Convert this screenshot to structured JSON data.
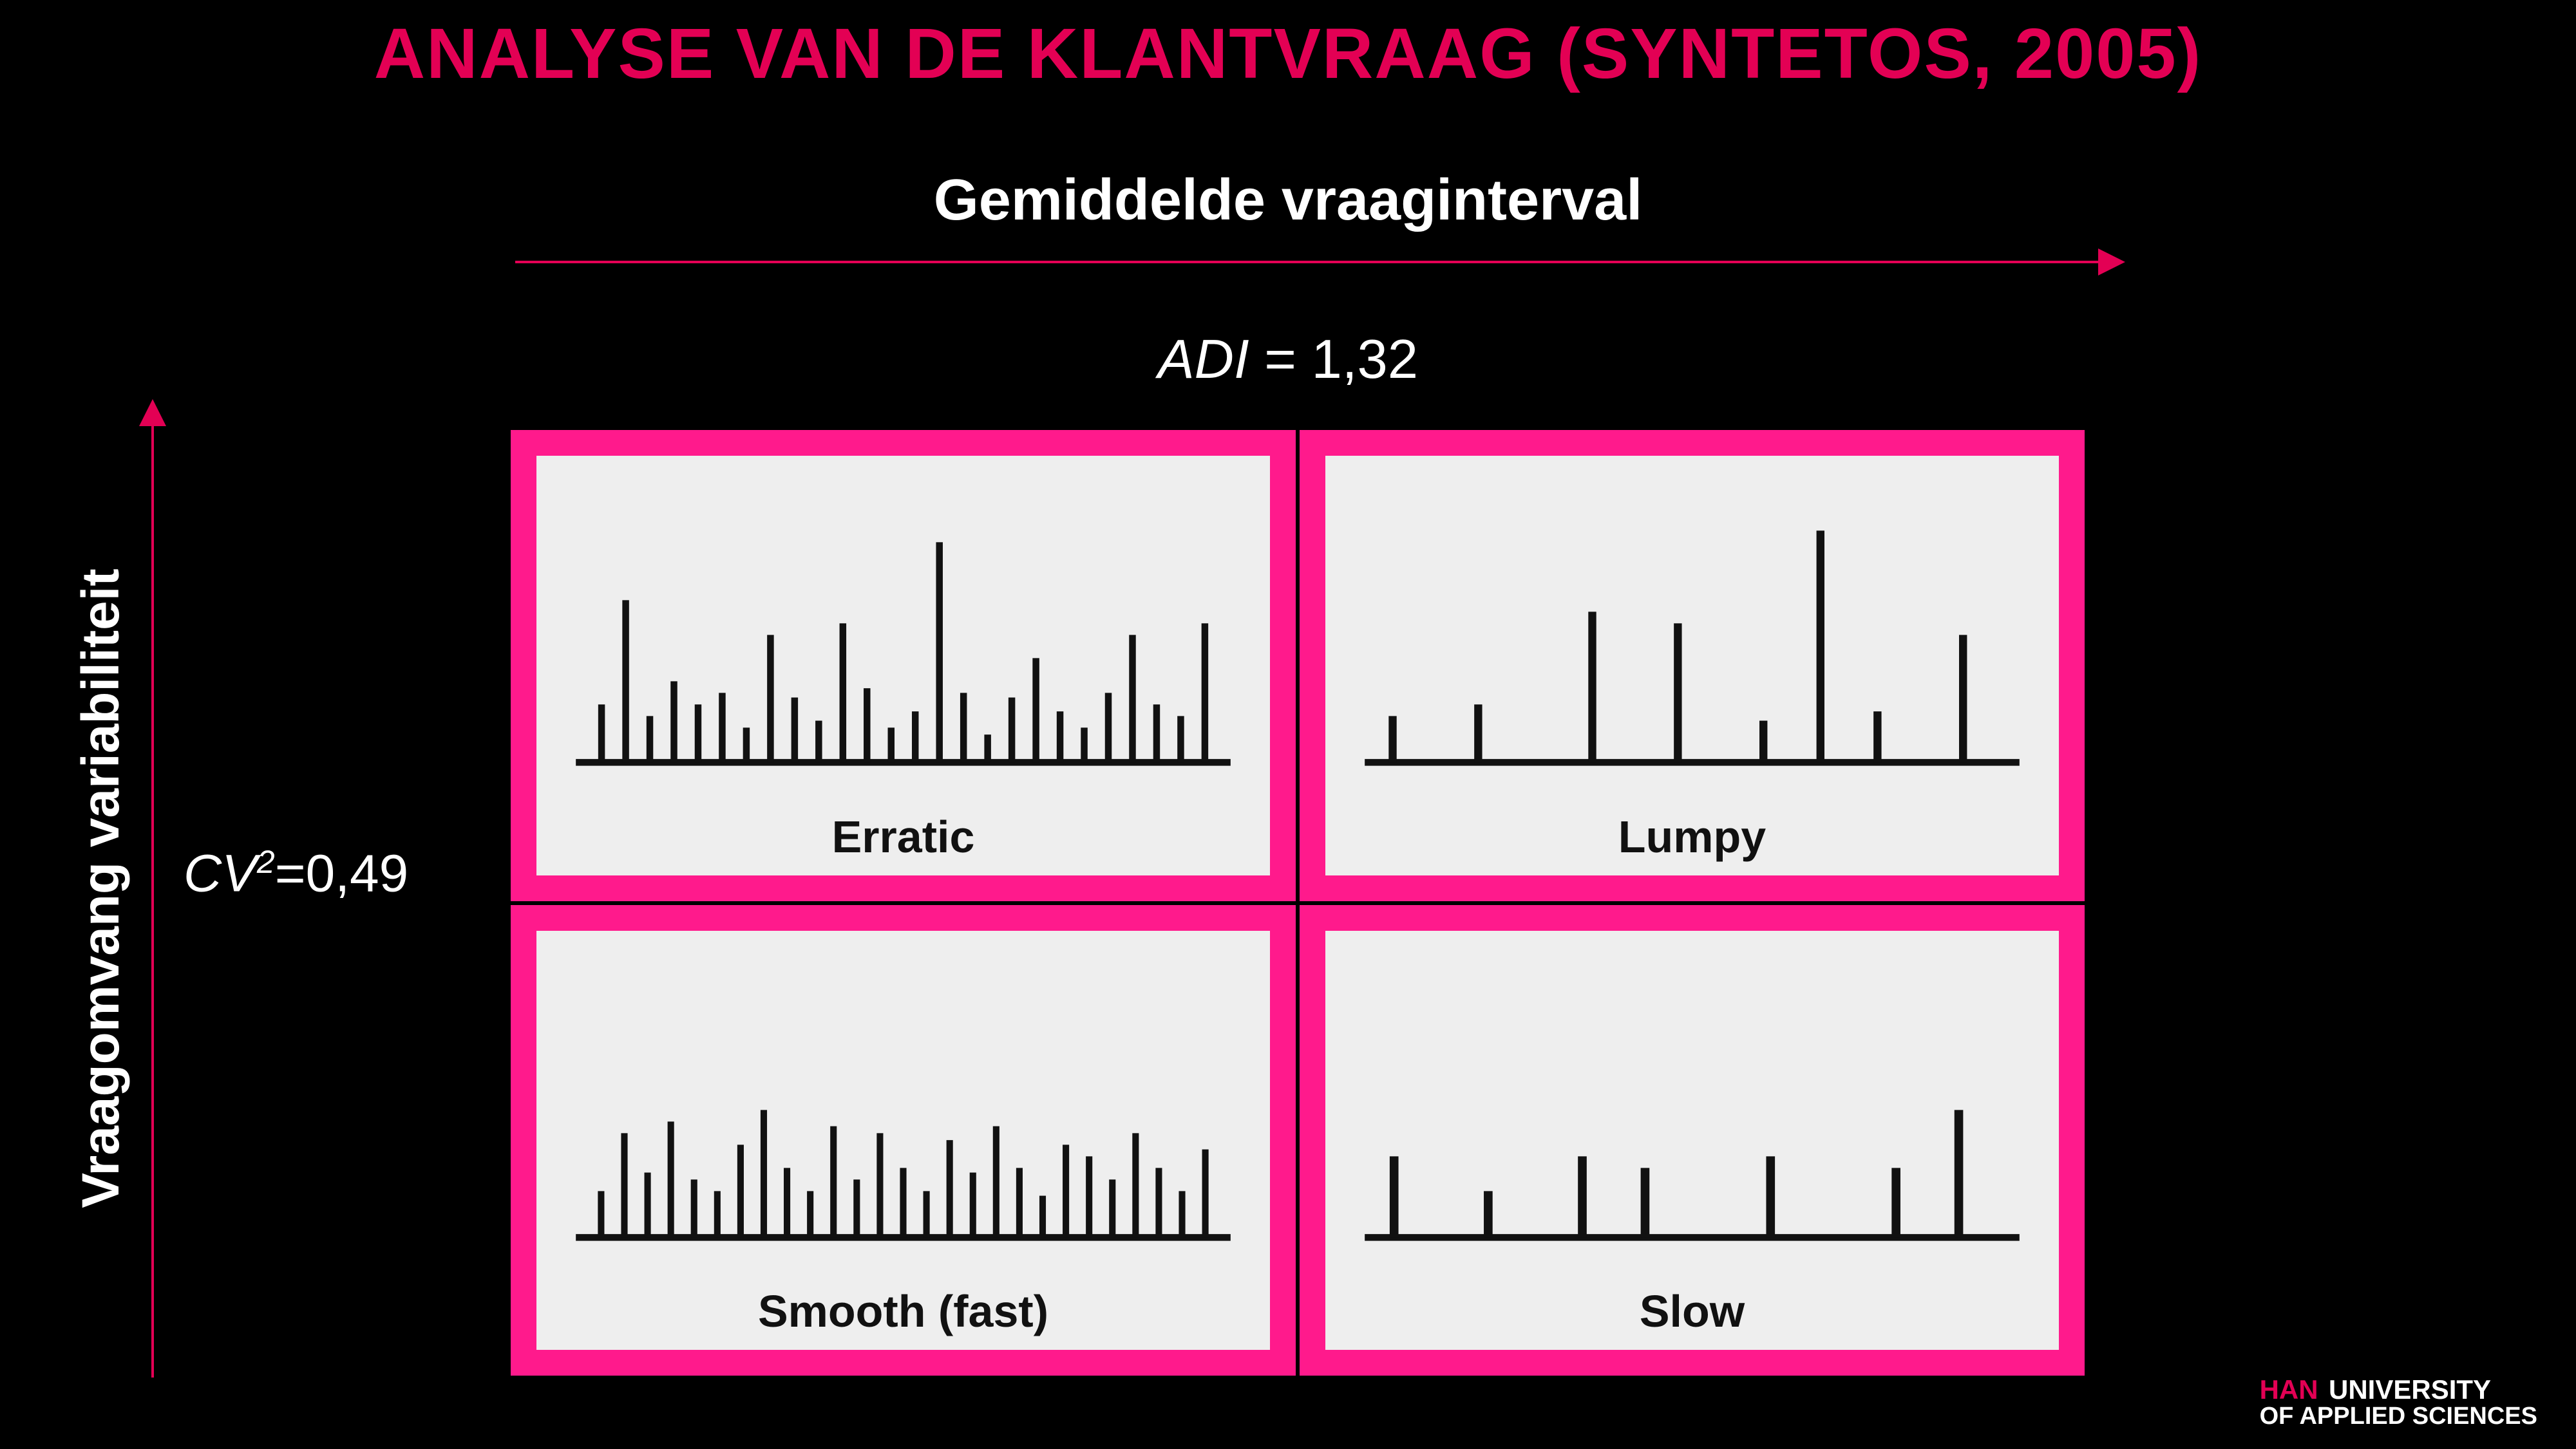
{
  "title": "ANALYSE VAN DE KLANTVRAAG (SYNTETOS, 2005)",
  "x_axis_label": "Gemiddelde vraaginterval",
  "y_axis_label": "Vraagomvang variabiliteit",
  "adi_text": "ADI = 1,32",
  "cv_html": "CV² =0,49",
  "cv_var": "CV",
  "cv_sup": "2",
  "cv_rest": "=0,49",
  "quadrant_border_color": "#ff1a8c",
  "panel_bg": "#eeeeee",
  "accent_color": "#e30054",
  "bar_color": "#111111",
  "quadrants": [
    {
      "key": "erratic",
      "label": "Erratic",
      "bars": [
        25,
        70,
        20,
        35,
        25,
        30,
        15,
        55,
        28,
        18,
        60,
        32,
        15,
        22,
        95,
        30,
        12,
        28,
        45,
        22,
        15,
        30,
        55,
        25,
        20,
        60
      ]
    },
    {
      "key": "lumpy",
      "label": "Lumpy",
      "bars": [
        20,
        0,
        0,
        25,
        0,
        0,
        0,
        65,
        0,
        0,
        60,
        0,
        0,
        18,
        0,
        100,
        0,
        22,
        0,
        0,
        55,
        0
      ]
    },
    {
      "key": "smooth",
      "label": "Smooth (fast)",
      "bars": [
        20,
        45,
        28,
        50,
        25,
        20,
        40,
        55,
        30,
        20,
        48,
        25,
        45,
        30,
        20,
        42,
        28,
        48,
        30,
        18,
        40,
        35,
        25,
        45,
        30,
        20,
        38
      ]
    },
    {
      "key": "slow",
      "label": "Slow",
      "bars": [
        35,
        0,
        0,
        20,
        0,
        0,
        35,
        0,
        30,
        0,
        0,
        0,
        35,
        0,
        0,
        0,
        30,
        0,
        55,
        0
      ]
    }
  ],
  "footer": {
    "han": "HAN",
    "line1": "UNIVERSITY",
    "line2": "OF APPLIED SCIENCES"
  }
}
